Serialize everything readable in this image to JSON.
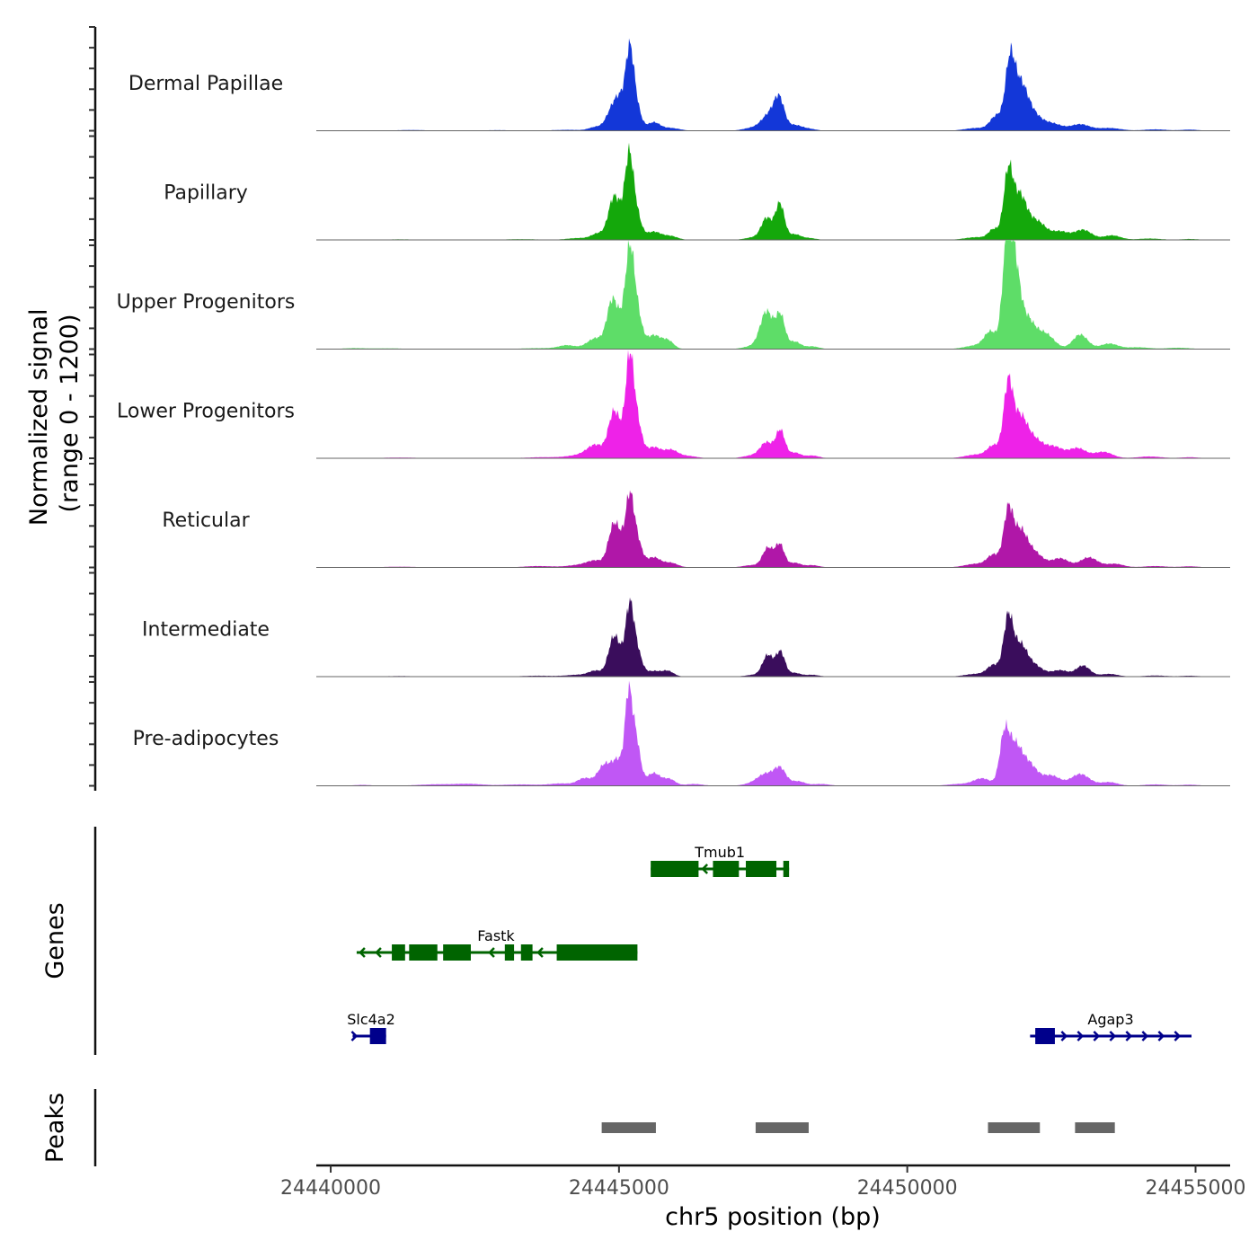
{
  "chart_data": {
    "type": "area",
    "title": "",
    "ylabel": "Normalized signal\n(range 0 - 1200)",
    "ylabel_lines": [
      "Normalized signal",
      "(range 0 - 1200)"
    ],
    "xlabel": "chr5 position (bp)",
    "chromosome": "chr5",
    "xlim": [
      24439750,
      24455600
    ],
    "ylim": [
      0,
      1200
    ],
    "x_ticks": [
      24440000,
      24445000,
      24450000,
      24455000
    ],
    "x_tick_labels": [
      "24440000",
      "24445000",
      "24450000",
      "24455000"
    ],
    "grid": false,
    "legend": "none",
    "series_model": "sum of gaussian components; each component = [center_bp, height_signal, width_bp]",
    "series": [
      {
        "name": "Dermal Papillae",
        "color": "#1337D8",
        "components": [
          [
            24441400,
            8,
            250
          ],
          [
            24442900,
            6,
            300
          ],
          [
            24444100,
            10,
            250
          ],
          [
            24444600,
            40,
            120
          ],
          [
            24444900,
            260,
            110
          ],
          [
            24445030,
            220,
            80
          ],
          [
            24445180,
            740,
            70
          ],
          [
            24445280,
            300,
            90
          ],
          [
            24445600,
            90,
            110
          ],
          [
            24445900,
            30,
            150
          ],
          [
            24447300,
            30,
            150
          ],
          [
            24447600,
            170,
            130
          ],
          [
            24447780,
            320,
            90
          ],
          [
            24448050,
            60,
            120
          ],
          [
            24448300,
            20,
            120
          ],
          [
            24451200,
            30,
            200
          ],
          [
            24451550,
            160,
            110
          ],
          [
            24451780,
            680,
            80
          ],
          [
            24451950,
            450,
            120
          ],
          [
            24452150,
            180,
            150
          ],
          [
            24452500,
            80,
            180
          ],
          [
            24453000,
            70,
            160
          ],
          [
            24453500,
            30,
            200
          ],
          [
            24454300,
            15,
            200
          ],
          [
            24454900,
            12,
            150
          ]
        ]
      },
      {
        "name": "Papillary",
        "color": "#14A80B",
        "components": [
          [
            24441200,
            6,
            300
          ],
          [
            24443300,
            8,
            300
          ],
          [
            24444300,
            20,
            200
          ],
          [
            24444650,
            70,
            120
          ],
          [
            24444900,
            420,
            90
          ],
          [
            24445030,
            180,
            80
          ],
          [
            24445170,
            780,
            70
          ],
          [
            24445280,
            330,
            90
          ],
          [
            24445600,
            90,
            130
          ],
          [
            24445900,
            40,
            120
          ],
          [
            24447350,
            30,
            150
          ],
          [
            24447560,
            230,
            90
          ],
          [
            24447790,
            400,
            80
          ],
          [
            24448050,
            60,
            100
          ],
          [
            24448300,
            20,
            120
          ],
          [
            24451200,
            30,
            200
          ],
          [
            24451500,
            110,
            90
          ],
          [
            24451750,
            700,
            80
          ],
          [
            24451950,
            470,
            120
          ],
          [
            24452250,
            200,
            150
          ],
          [
            24452650,
            90,
            150
          ],
          [
            24453050,
            110,
            150
          ],
          [
            24453550,
            50,
            150
          ],
          [
            24454200,
            15,
            200
          ],
          [
            24454900,
            10,
            150
          ]
        ]
      },
      {
        "name": "Upper Progenitors",
        "color": "#5EDD68",
        "components": [
          [
            24440400,
            10,
            200
          ],
          [
            24441000,
            8,
            250
          ],
          [
            24443600,
            10,
            300
          ],
          [
            24444100,
            40,
            150
          ],
          [
            24444600,
            120,
            150
          ],
          [
            24444880,
            500,
            90
          ],
          [
            24445030,
            200,
            80
          ],
          [
            24445180,
            940,
            75
          ],
          [
            24445300,
            420,
            90
          ],
          [
            24445600,
            150,
            120
          ],
          [
            24445850,
            90,
            100
          ],
          [
            24447300,
            30,
            150
          ],
          [
            24447560,
            410,
            110
          ],
          [
            24447800,
            360,
            80
          ],
          [
            24448050,
            80,
            100
          ],
          [
            24448350,
            30,
            120
          ],
          [
            24451200,
            40,
            200
          ],
          [
            24451450,
            180,
            110
          ],
          [
            24451720,
            980,
            75
          ],
          [
            24451850,
            840,
            90
          ],
          [
            24452050,
            350,
            150
          ],
          [
            24452400,
            160,
            150
          ],
          [
            24453000,
            160,
            130
          ],
          [
            24453500,
            60,
            150
          ],
          [
            24454000,
            20,
            200
          ],
          [
            24454700,
            15,
            200
          ]
        ]
      },
      {
        "name": "Lower Progenitors",
        "color": "#EE22E8",
        "components": [
          [
            24441200,
            8,
            300
          ],
          [
            24443700,
            12,
            300
          ],
          [
            24444300,
            30,
            200
          ],
          [
            24444600,
            140,
            150
          ],
          [
            24444900,
            440,
            90
          ],
          [
            24445020,
            180,
            80
          ],
          [
            24445180,
            970,
            70
          ],
          [
            24445300,
            420,
            90
          ],
          [
            24445600,
            120,
            120
          ],
          [
            24445900,
            90,
            120
          ],
          [
            24446200,
            25,
            150
          ],
          [
            24447300,
            30,
            150
          ],
          [
            24447560,
            170,
            110
          ],
          [
            24447800,
            300,
            80
          ],
          [
            24448050,
            60,
            100
          ],
          [
            24448350,
            30,
            120
          ],
          [
            24451200,
            40,
            200
          ],
          [
            24451500,
            130,
            110
          ],
          [
            24451750,
            770,
            80
          ],
          [
            24451950,
            420,
            120
          ],
          [
            24452200,
            200,
            150
          ],
          [
            24452550,
            120,
            150
          ],
          [
            24452950,
            110,
            150
          ],
          [
            24453400,
            70,
            160
          ],
          [
            24454200,
            20,
            200
          ],
          [
            24454900,
            12,
            150
          ]
        ]
      },
      {
        "name": "Reticular",
        "color": "#B017A8",
        "components": [
          [
            24441200,
            8,
            300
          ],
          [
            24443600,
            15,
            250
          ],
          [
            24444300,
            25,
            200
          ],
          [
            24444600,
            70,
            150
          ],
          [
            24444900,
            420,
            90
          ],
          [
            24445030,
            200,
            80
          ],
          [
            24445180,
            660,
            70
          ],
          [
            24445300,
            320,
            90
          ],
          [
            24445600,
            110,
            120
          ],
          [
            24445900,
            50,
            120
          ],
          [
            24447300,
            25,
            150
          ],
          [
            24447580,
            210,
            90
          ],
          [
            24447790,
            250,
            80
          ],
          [
            24448050,
            50,
            100
          ],
          [
            24448350,
            25,
            120
          ],
          [
            24451200,
            40,
            200
          ],
          [
            24451500,
            130,
            110
          ],
          [
            24451750,
            580,
            80
          ],
          [
            24451950,
            380,
            120
          ],
          [
            24452200,
            160,
            150
          ],
          [
            24452650,
            100,
            150
          ],
          [
            24453150,
            110,
            150
          ],
          [
            24453600,
            40,
            150
          ],
          [
            24454300,
            15,
            200
          ],
          [
            24454900,
            12,
            150
          ]
        ]
      },
      {
        "name": "Intermediate",
        "color": "#3A0D5C",
        "components": [
          [
            24441200,
            6,
            300
          ],
          [
            24443600,
            10,
            300
          ],
          [
            24444300,
            20,
            200
          ],
          [
            24444600,
            60,
            120
          ],
          [
            24444900,
            390,
            90
          ],
          [
            24445020,
            150,
            80
          ],
          [
            24445180,
            680,
            70
          ],
          [
            24445300,
            300,
            90
          ],
          [
            24445600,
            60,
            120
          ],
          [
            24445850,
            60,
            100
          ],
          [
            24447350,
            20,
            150
          ],
          [
            24447580,
            230,
            90
          ],
          [
            24447800,
            270,
            80
          ],
          [
            24448050,
            40,
            100
          ],
          [
            24448350,
            20,
            120
          ],
          [
            24451200,
            30,
            200
          ],
          [
            24451500,
            120,
            110
          ],
          [
            24451750,
            610,
            80
          ],
          [
            24451950,
            330,
            120
          ],
          [
            24452200,
            120,
            150
          ],
          [
            24452650,
            70,
            150
          ],
          [
            24453050,
            120,
            120
          ],
          [
            24453500,
            30,
            150
          ],
          [
            24454300,
            12,
            200
          ],
          [
            24454900,
            10,
            150
          ]
        ]
      },
      {
        "name": "Pre-adipocytes",
        "color": "#C057F5",
        "components": [
          [
            24440550,
            10,
            150
          ],
          [
            24441800,
            15,
            300
          ],
          [
            24442400,
            20,
            250
          ],
          [
            24443300,
            15,
            300
          ],
          [
            24444000,
            25,
            200
          ],
          [
            24444400,
            80,
            120
          ],
          [
            24444750,
            230,
            120
          ],
          [
            24444990,
            260,
            100
          ],
          [
            24445160,
            830,
            60
          ],
          [
            24445280,
            560,
            80
          ],
          [
            24445600,
            140,
            120
          ],
          [
            24445880,
            70,
            100
          ],
          [
            24446300,
            20,
            150
          ],
          [
            24447300,
            20,
            150
          ],
          [
            24447560,
            130,
            150
          ],
          [
            24447800,
            170,
            100
          ],
          [
            24448100,
            50,
            120
          ],
          [
            24448500,
            20,
            150
          ],
          [
            24450900,
            20,
            200
          ],
          [
            24451300,
            80,
            150
          ],
          [
            24451680,
            480,
            80
          ],
          [
            24451850,
            400,
            120
          ],
          [
            24452100,
            240,
            150
          ],
          [
            24452500,
            110,
            150
          ],
          [
            24453000,
            130,
            160
          ],
          [
            24453500,
            40,
            150
          ],
          [
            24454300,
            15,
            200
          ],
          [
            24454900,
            12,
            150
          ]
        ]
      }
    ],
    "genes": [
      {
        "name": "Tmub1",
        "strand": "-",
        "color": "#006400",
        "row": 1,
        "start": 24445550,
        "end": 24447950,
        "exons": [
          [
            24445550,
            24446380
          ],
          [
            24446630,
            24447080
          ],
          [
            24447200,
            24447730
          ],
          [
            24447850,
            24447950
          ]
        ]
      },
      {
        "name": "Fastk",
        "strand": "-",
        "color": "#006400",
        "row": 2,
        "start": 24440450,
        "end": 24445320,
        "exons": [
          [
            24441060,
            24441290
          ],
          [
            24441360,
            24441850
          ],
          [
            24441950,
            24442430
          ],
          [
            24443020,
            24443180
          ],
          [
            24443300,
            24443500
          ],
          [
            24443920,
            24445320
          ]
        ]
      },
      {
        "name": "Slc4a2",
        "strand": "+",
        "color": "#00008B",
        "row": 3,
        "start": 24440380,
        "end": 24440960,
        "exons": [
          [
            24440680,
            24440960
          ]
        ]
      },
      {
        "name": "Agap3",
        "strand": "+",
        "color": "#00008B",
        "row": 3,
        "start": 24452130,
        "end": 24454930,
        "exons": [
          [
            24452220,
            24452560
          ]
        ]
      }
    ],
    "peaks": [
      [
        24444700,
        24445640
      ],
      [
        24447370,
        24448290
      ],
      [
        24451400,
        24452300
      ],
      [
        24452910,
        24453600
      ]
    ],
    "peak_color": "#666666",
    "panel_labels": {
      "genes": "Genes",
      "peaks": "Peaks"
    }
  }
}
